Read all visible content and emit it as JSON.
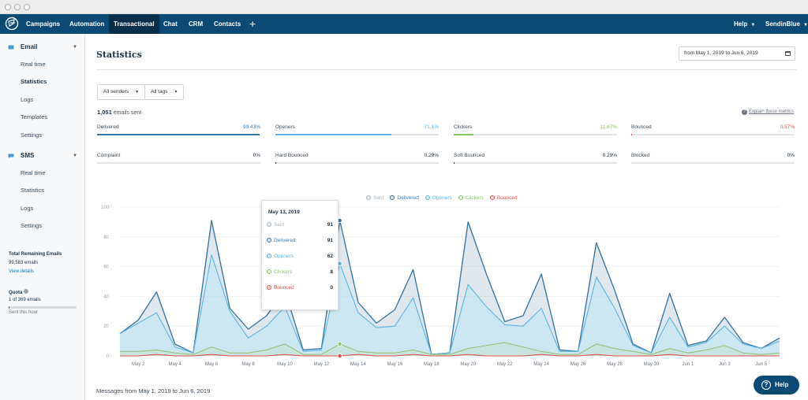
{
  "topnav": {
    "items": [
      {
        "label": "Campaigns",
        "active": false
      },
      {
        "label": "Automation",
        "active": false
      },
      {
        "label": "Transactional",
        "active": true
      },
      {
        "label": "Chat",
        "active": false
      },
      {
        "label": "CRM",
        "active": false
      },
      {
        "label": "Contacts",
        "active": false
      }
    ],
    "plus": "+",
    "help_label": "Help",
    "account_label": "SendinBlue"
  },
  "sidebar": {
    "email_header": "Email",
    "email_items": [
      "Real time",
      "Statistics",
      "Logs",
      "Templates",
      "Settings"
    ],
    "active_item": "Statistics",
    "sms_header": "SMS",
    "sms_items": [
      "Real time",
      "Statistics",
      "Logs",
      "Settings"
    ],
    "remaining_title": "Total Remaining Emails",
    "remaining_value": "99,583 emails",
    "view_details": "View details",
    "quota_title": "Quota",
    "quota_value": "1 of 369 emails",
    "quota_fraction": 0.003,
    "quota_caption": "Sent this hour"
  },
  "page": {
    "title": "Statistics",
    "date_range": "from May 1, 2019 to Jun 6, 2019",
    "senders_select": "All senders",
    "tags_select": "All tags",
    "sent_count": "1,051",
    "sent_suffix": "emails sent",
    "explain_link": "Explain these metrics",
    "messages_caption": "Messages from May 1, 2019 to Jun 6, 2019",
    "help_button": "Help",
    "help_glyph": "?"
  },
  "metrics": [
    {
      "label": "Delivered",
      "value": "99.43%",
      "fraction": 0.9943,
      "color": "#3a78a6"
    },
    {
      "label": "Openers",
      "value": "71.1%",
      "fraction": 0.711,
      "color": "#5bb5e2"
    },
    {
      "label": "Clickers",
      "value": "11.87%",
      "fraction": 0.1187,
      "color": "#8cc269"
    },
    {
      "label": "Bounced",
      "value": "0.57%",
      "fraction": 0.0057,
      "color": "#e74c4c"
    },
    {
      "label": "Complaint",
      "value": "0%",
      "fraction": 0,
      "color": "#1e3244"
    },
    {
      "label": "Hard Bounced",
      "value": "0.29%",
      "fraction": 0.0029,
      "color": "#1e3244"
    },
    {
      "label": "Soft Bounced",
      "value": "0.29%",
      "fraction": 0.0029,
      "color": "#1e3244"
    },
    {
      "label": "Blocked",
      "value": "0%",
      "fraction": 0,
      "color": "#1e3244"
    }
  ],
  "tooltip": {
    "title": "May 13, 2019",
    "rows": [
      {
        "label": "Sent",
        "value": "91",
        "color": "#aab4bd"
      },
      {
        "label": "Delivered",
        "value": "91",
        "color": "#3a78a6"
      },
      {
        "label": "Openers",
        "value": "62",
        "color": "#5bb5e2"
      },
      {
        "label": "Clickers",
        "value": "8",
        "color": "#8cc269"
      },
      {
        "label": "Bounced",
        "value": "0",
        "color": "#e74c4c"
      }
    ]
  },
  "chart_data": {
    "type": "area",
    "x_ticks": [
      "May 2",
      "May 4",
      "May 6",
      "May 8",
      "May 10",
      "May 12",
      "May 14",
      "May 16",
      "May 18",
      "May 20",
      "May 22",
      "May 24",
      "May 26",
      "May 28",
      "May 30",
      "Jun 1",
      "Jun 3",
      "Jun 5"
    ],
    "ylim": [
      0,
      100
    ],
    "y_ticks": [
      0,
      20,
      40,
      60,
      80,
      100
    ],
    "grid": true,
    "legend_position": "top-center",
    "hover_index": 12,
    "series": [
      {
        "name": "Sent",
        "color": "#aab4bd",
        "values": [
          15,
          24,
          43,
          8,
          2,
          91,
          32,
          18,
          27,
          44,
          4,
          5,
          91,
          36,
          22,
          31,
          58,
          1,
          2,
          90,
          55,
          23,
          27,
          55,
          4,
          3,
          76,
          44,
          8,
          2,
          42,
          7,
          10,
          26,
          9,
          5,
          12
        ]
      },
      {
        "name": "Delivered",
        "color": "#3a78a6",
        "values": [
          15,
          24,
          43,
          8,
          2,
          91,
          32,
          18,
          27,
          44,
          4,
          5,
          91,
          36,
          22,
          31,
          58,
          1,
          2,
          90,
          55,
          23,
          27,
          55,
          4,
          3,
          76,
          44,
          8,
          2,
          42,
          7,
          10,
          26,
          9,
          5,
          12
        ]
      },
      {
        "name": "Openers",
        "color": "#5bb5e2",
        "values": [
          15,
          22,
          29,
          6,
          2,
          68,
          30,
          12,
          20,
          33,
          3,
          4,
          62,
          29,
          19,
          20,
          39,
          1,
          2,
          48,
          33,
          21,
          20,
          32,
          3,
          3,
          53,
          32,
          7,
          2,
          26,
          6,
          9,
          20,
          8,
          5,
          10
        ]
      },
      {
        "name": "Clickers",
        "color": "#8cc269",
        "values": [
          3,
          3,
          4,
          2,
          1,
          6,
          2,
          2,
          4,
          8,
          1,
          1,
          8,
          3,
          2,
          2,
          4,
          1,
          1,
          5,
          7,
          9,
          6,
          3,
          1,
          1,
          8,
          5,
          3,
          1,
          5,
          2,
          4,
          7,
          2,
          1,
          2
        ]
      },
      {
        "name": "Bounced",
        "color": "#e74c4c",
        "values": [
          0,
          0,
          1,
          0,
          0,
          1,
          0,
          0,
          0,
          1,
          0,
          0,
          0,
          1,
          0,
          0,
          1,
          0,
          0,
          1,
          0,
          0,
          0,
          1,
          0,
          0,
          1,
          0,
          0,
          0,
          1,
          0,
          0,
          0,
          0,
          0,
          0
        ]
      }
    ]
  }
}
